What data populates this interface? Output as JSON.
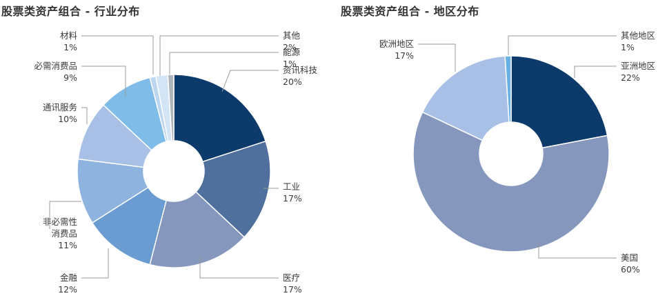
{
  "chart_data": [
    {
      "type": "pie",
      "title": "股票类资产组合 - 行业分布",
      "style": "donut",
      "slices": [
        {
          "label": "资讯科技",
          "value": 20,
          "value_label": "20%",
          "color": "#0b3a6b"
        },
        {
          "label": "工业",
          "value": 17,
          "value_label": "17%",
          "color": "#4f6f9c"
        },
        {
          "label": "医疗",
          "value": 17,
          "value_label": "17%",
          "color": "#8597bd"
        },
        {
          "label": "金融",
          "value": 12,
          "value_label": "12%",
          "color": "#6a9bd1"
        },
        {
          "label": "非必需性\n消费品",
          "value": 11,
          "value_label": "11%",
          "color": "#8fb3df"
        },
        {
          "label": "通讯服务",
          "value": 10,
          "value_label": "10%",
          "color": "#a8c0e6"
        },
        {
          "label": "必需消费品",
          "value": 9,
          "value_label": "9%",
          "color": "#7fbde8"
        },
        {
          "label": "材料",
          "value": 1,
          "value_label": "1%",
          "color": "#bcd6f0"
        },
        {
          "label": "其他",
          "value": 2,
          "value_label": "2%",
          "color": "#d3e4f5"
        },
        {
          "label": "能源",
          "value": 1,
          "value_label": "1%",
          "color": "#b0b5bc"
        }
      ]
    },
    {
      "type": "pie",
      "title": "股票类资产组合 - 地区分布",
      "style": "donut",
      "slices": [
        {
          "label": "亚洲地区",
          "value": 22,
          "value_label": "22%",
          "color": "#0b3a6b"
        },
        {
          "label": "美国",
          "value": 60,
          "value_label": "60%",
          "color": "#8597bd"
        },
        {
          "label": "欧洲地区",
          "value": 17,
          "value_label": "17%",
          "color": "#a8c0e6"
        },
        {
          "label": "其他地区",
          "value": 1,
          "value_label": "1%",
          "color": "#6ab0e0"
        }
      ]
    }
  ]
}
